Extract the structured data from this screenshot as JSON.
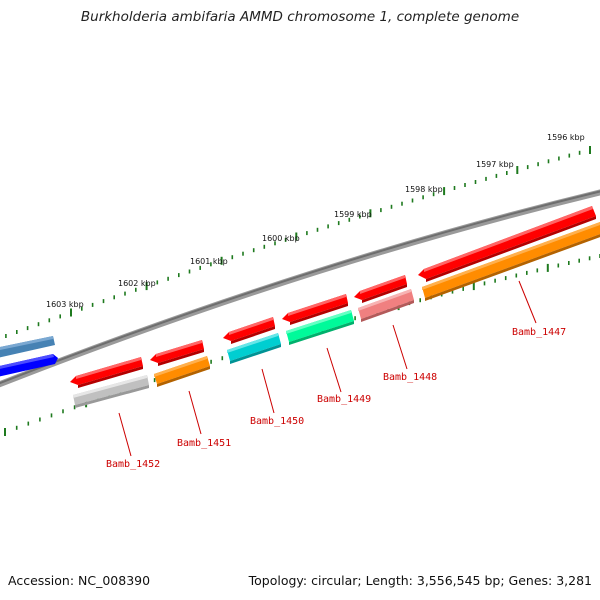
{
  "title": "Burkholderia ambifaria AMMD chromosome 1, complete genome",
  "footer": {
    "accession": "Accession: NC_008390",
    "topology": "Topology: circular; Length: 3,556,545 bp; Genes: 3,281"
  },
  "kbp_labels": [
    "1603 kbp",
    "1602 kbp",
    "1601 kbp",
    "1600 kbp",
    "1599 kbp",
    "1598 kbp",
    "1597 kbp",
    "1596 kbp"
  ],
  "gene_labels": [
    "Bamb_1452",
    "Bamb_1451",
    "Bamb_1450",
    "Bamb_1449",
    "Bamb_1448",
    "Bamb_1447"
  ],
  "colors": {
    "backbone": "#808080",
    "ticks": "#1e7a1e",
    "labels": "#cc0000",
    "cds": "#ff0000",
    "tracks": [
      "#4682b4",
      "#0000ff",
      "#c0c0c0",
      "#ff8c00",
      "#00ced1",
      "#00fa9a",
      "#f08080"
    ]
  }
}
